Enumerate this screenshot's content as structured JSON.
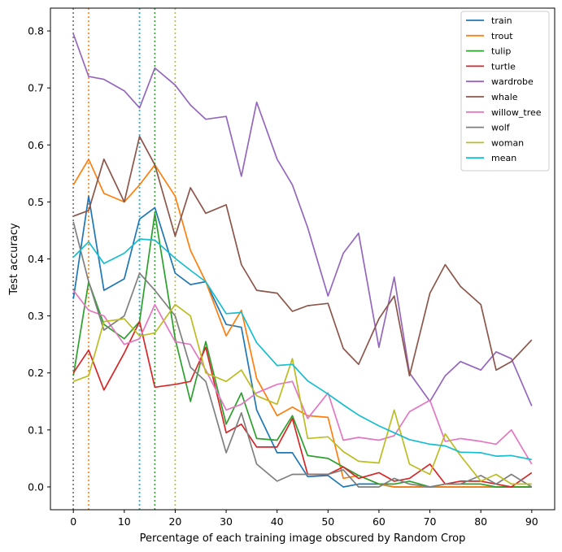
{
  "chart_data": {
    "type": "line",
    "title": "",
    "xlabel": "Percentage of each training image obscured by Random Crop",
    "ylabel": "Test accuracy",
    "xlim": [
      -4.5,
      94.5
    ],
    "ylim": [
      -0.04,
      0.84
    ],
    "xticks": [
      0,
      10,
      20,
      30,
      40,
      50,
      60,
      70,
      80,
      90
    ],
    "yticks": [
      0.0,
      0.1,
      0.2,
      0.3,
      0.4,
      0.5,
      0.6,
      0.7,
      0.8
    ],
    "ytick_labels": [
      "0.0",
      "0.1",
      "0.2",
      "0.3",
      "0.4",
      "0.5",
      "0.6",
      "0.7",
      "0.8"
    ],
    "xtick_labels": [
      "0",
      "10",
      "20",
      "30",
      "40",
      "50",
      "60",
      "70",
      "80",
      "90"
    ],
    "legend_position": "top-right",
    "x": [
      0,
      3,
      6,
      10,
      13,
      16,
      20,
      23,
      26,
      30,
      33,
      36,
      40,
      43,
      46,
      50,
      53,
      56,
      60,
      63,
      66,
      70,
      73,
      76,
      80,
      83,
      86,
      90
    ],
    "series": [
      {
        "name": "train",
        "color": "#1f77b4",
        "values": [
          0.33,
          0.51,
          0.345,
          0.365,
          0.47,
          0.49,
          0.375,
          0.355,
          0.36,
          0.285,
          0.28,
          0.135,
          0.06,
          0.06,
          0.018,
          0.02,
          0.0,
          0.005,
          0.005,
          0.0,
          0.0,
          0.0,
          0.0,
          0.0,
          0.0,
          0.0,
          0.0,
          0.0
        ]
      },
      {
        "name": "trout",
        "color": "#ff7f0e",
        "values": [
          0.53,
          0.575,
          0.515,
          0.5,
          0.53,
          0.565,
          0.51,
          0.415,
          0.36,
          0.265,
          0.31,
          0.19,
          0.125,
          0.14,
          0.125,
          0.122,
          0.015,
          0.02,
          0.005,
          0.0,
          0.0,
          0.0,
          0.0,
          0.0,
          0.0,
          0.0,
          0.0,
          0.0
        ]
      },
      {
        "name": "tulip",
        "color": "#2ca02c",
        "values": [
          0.195,
          0.36,
          0.285,
          0.26,
          0.29,
          0.48,
          0.26,
          0.15,
          0.255,
          0.11,
          0.165,
          0.085,
          0.082,
          0.125,
          0.055,
          0.05,
          0.035,
          0.02,
          0.005,
          0.005,
          0.01,
          0.0,
          0.005,
          0.005,
          0.005,
          0.0,
          0.0,
          0.0
        ]
      },
      {
        "name": "turtle",
        "color": "#d62728",
        "values": [
          0.2,
          0.24,
          0.17,
          0.235,
          0.29,
          0.175,
          0.18,
          0.185,
          0.245,
          0.095,
          0.11,
          0.07,
          0.07,
          0.12,
          0.022,
          0.022,
          0.035,
          0.015,
          0.025,
          0.01,
          0.015,
          0.04,
          0.005,
          0.01,
          0.01,
          0.005,
          0.0,
          0.025
        ]
      },
      {
        "name": "wardrobe",
        "color": "#9467bd",
        "values": [
          0.795,
          0.72,
          0.715,
          0.695,
          0.665,
          0.735,
          0.705,
          0.67,
          0.645,
          0.65,
          0.545,
          0.675,
          0.575,
          0.53,
          0.455,
          0.335,
          0.41,
          0.445,
          0.245,
          0.368,
          0.2,
          0.15,
          0.195,
          0.22,
          0.205,
          0.237,
          0.225,
          0.142
        ]
      },
      {
        "name": "whale",
        "color": "#8c564b",
        "values": [
          0.475,
          0.485,
          0.575,
          0.5,
          0.615,
          0.565,
          0.44,
          0.525,
          0.48,
          0.495,
          0.39,
          0.345,
          0.34,
          0.308,
          0.318,
          0.322,
          0.243,
          0.215,
          0.295,
          0.335,
          0.195,
          0.34,
          0.39,
          0.352,
          0.32,
          0.205,
          0.22,
          0.258
        ]
      },
      {
        "name": "willow_tree",
        "color": "#e377c2",
        "values": [
          0.345,
          0.31,
          0.3,
          0.25,
          0.26,
          0.32,
          0.255,
          0.25,
          0.205,
          0.135,
          0.145,
          0.165,
          0.18,
          0.185,
          0.12,
          0.165,
          0.082,
          0.087,
          0.082,
          0.09,
          0.132,
          0.152,
          0.08,
          0.085,
          0.08,
          0.075,
          0.1,
          0.04
        ]
      },
      {
        "name": "wolf",
        "color": "#7f7f7f",
        "values": [
          0.465,
          0.36,
          0.275,
          0.3,
          0.375,
          0.345,
          0.3,
          0.21,
          0.185,
          0.06,
          0.13,
          0.04,
          0.01,
          0.022,
          0.022,
          0.022,
          0.03,
          0.0,
          0.0,
          0.015,
          0.005,
          0.0,
          0.005,
          0.005,
          0.02,
          0.005,
          0.022,
          0.0
        ]
      },
      {
        "name": "woman",
        "color": "#bcbd22",
        "values": [
          0.185,
          0.195,
          0.29,
          0.295,
          0.265,
          0.27,
          0.32,
          0.3,
          0.2,
          0.185,
          0.205,
          0.16,
          0.145,
          0.225,
          0.085,
          0.088,
          0.062,
          0.045,
          0.042,
          0.135,
          0.04,
          0.022,
          0.093,
          0.055,
          0.01,
          0.022,
          0.005,
          0.005
        ]
      },
      {
        "name": "mean",
        "color": "#17becf",
        "values": [
          0.403,
          0.43,
          0.392,
          0.41,
          0.435,
          0.433,
          0.401,
          0.38,
          0.36,
          0.304,
          0.306,
          0.253,
          0.213,
          0.215,
          0.186,
          0.163,
          0.144,
          0.126,
          0.107,
          0.095,
          0.083,
          0.075,
          0.072,
          0.061,
          0.06,
          0.054,
          0.055,
          0.048
        ]
      }
    ],
    "vlines": [
      {
        "x": 0,
        "color": "#8c564b",
        "style": "dotted"
      },
      {
        "x": 0,
        "color": "#9467bd",
        "style": "dotted"
      },
      {
        "x": 0,
        "color": "#7f7f7f",
        "style": "dotted"
      },
      {
        "x": 3,
        "color": "#ff7f0e",
        "style": "dotted"
      },
      {
        "x": 13,
        "color": "#1f77b4",
        "style": "dotted"
      },
      {
        "x": 13,
        "color": "#17becf",
        "style": "dotted"
      },
      {
        "x": 16,
        "color": "#2ca02c",
        "style": "dotted"
      },
      {
        "x": 20,
        "color": "#bcbd22",
        "style": "dotted"
      }
    ]
  }
}
